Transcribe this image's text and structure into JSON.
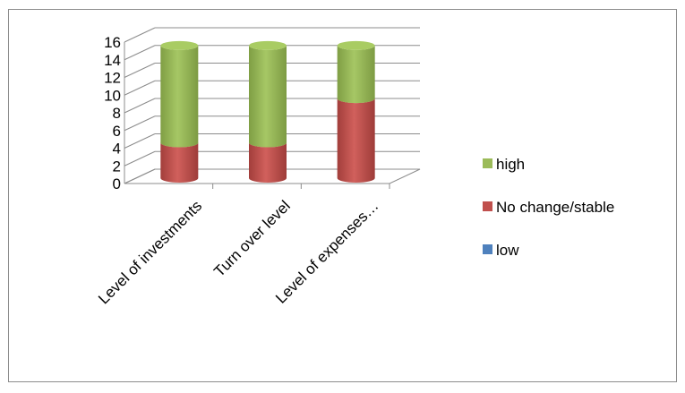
{
  "chart_data": {
    "type": "bar",
    "stacked": true,
    "three_d": true,
    "bar_shape": "cylinder",
    "title": "",
    "xlabel": "",
    "ylabel": "",
    "ylim": [
      0,
      16
    ],
    "y_ticks": [
      "0",
      "2",
      "4",
      "6",
      "8",
      "10",
      "12",
      "14",
      "16"
    ],
    "y_tick_values": [
      0,
      2,
      4,
      6,
      8,
      10,
      12,
      14,
      16
    ],
    "grid": true,
    "legend_position": "right",
    "categories": [
      "Level of investments",
      "Turn over level",
      "Level of expenses…"
    ],
    "series": [
      {
        "name": "low",
        "color": "#4f81bd",
        "values": [
          0,
          0,
          0
        ]
      },
      {
        "name": "No change/stable",
        "color": "#c0504d",
        "values": [
          4,
          4,
          9
        ]
      },
      {
        "name": "high",
        "color": "#9bbb59",
        "values": [
          11,
          11,
          6
        ]
      }
    ],
    "legend_order": [
      "high",
      "No change/stable",
      "low"
    ]
  }
}
